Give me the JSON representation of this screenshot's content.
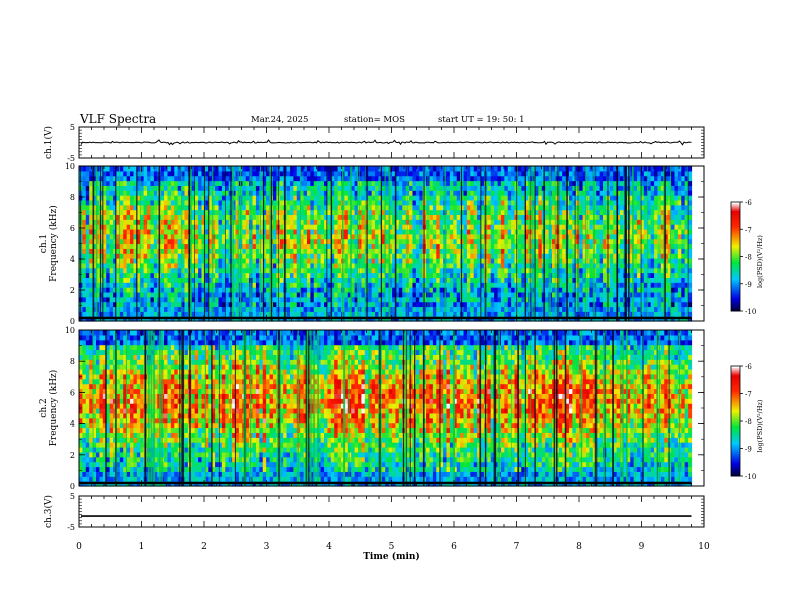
{
  "header": {
    "title": "VLF Spectra",
    "date": "Mar.24, 2025",
    "station": "station= MOS",
    "start": "start  UT =   19: 50: 1"
  },
  "chart_data": [
    {
      "type": "line",
      "panel": "ch1-waveform",
      "ylabel": "ch.1(V)",
      "ylim": [
        -5,
        5
      ],
      "ytick_labels": [
        "5",
        "-5"
      ],
      "xlim": [
        0,
        10
      ],
      "series": [
        {
          "x": [
            0,
            9.8
          ],
          "values": [
            0,
            0
          ]
        }
      ],
      "color": "#000000"
    },
    {
      "type": "heatmap",
      "panel": "ch1-spectrogram",
      "ylabel": "ch.1\nFrequency (kHz)",
      "ylim": [
        0,
        10
      ],
      "ytick_labels": [
        "0",
        "2",
        "4",
        "6",
        "8",
        "10"
      ],
      "xlim": [
        0,
        10
      ],
      "data_extent_x": [
        0,
        9.8
      ],
      "colorbar": {
        "label": "log(PSD)(V²/Hz)",
        "range": [
          -10,
          -6
        ],
        "tick_labels": [
          "-6",
          "-7",
          "-8",
          "-9",
          "-10"
        ]
      }
    },
    {
      "type": "heatmap",
      "panel": "ch2-spectrogram",
      "ylabel": "ch.2\nFrequency (kHz)",
      "ylim": [
        0,
        10
      ],
      "ytick_labels": [
        "0",
        "2",
        "4",
        "6",
        "8",
        "10"
      ],
      "xlim": [
        0,
        10
      ],
      "data_extent_x": [
        0,
        9.8
      ],
      "colorbar": {
        "label": "log(PSD)(V²/Hz)",
        "range": [
          -10,
          -6
        ],
        "tick_labels": [
          "-6",
          "-7",
          "-8",
          "-9",
          "-10"
        ]
      }
    },
    {
      "type": "line",
      "panel": "ch3-waveform",
      "ylabel": "ch.3(V)",
      "ylim": [
        -5,
        5
      ],
      "ytick_labels": [
        "5",
        "-5"
      ],
      "xlim": [
        0,
        10
      ],
      "xlabel": "Time  (min)",
      "xtick_labels": [
        "0",
        "1",
        "2",
        "3",
        "4",
        "5",
        "6",
        "7",
        "8",
        "9",
        "10"
      ],
      "series": [
        {
          "x": [
            0,
            9.8
          ],
          "values": [
            -1.5,
            -1.5
          ]
        }
      ],
      "color": "#000000"
    }
  ]
}
